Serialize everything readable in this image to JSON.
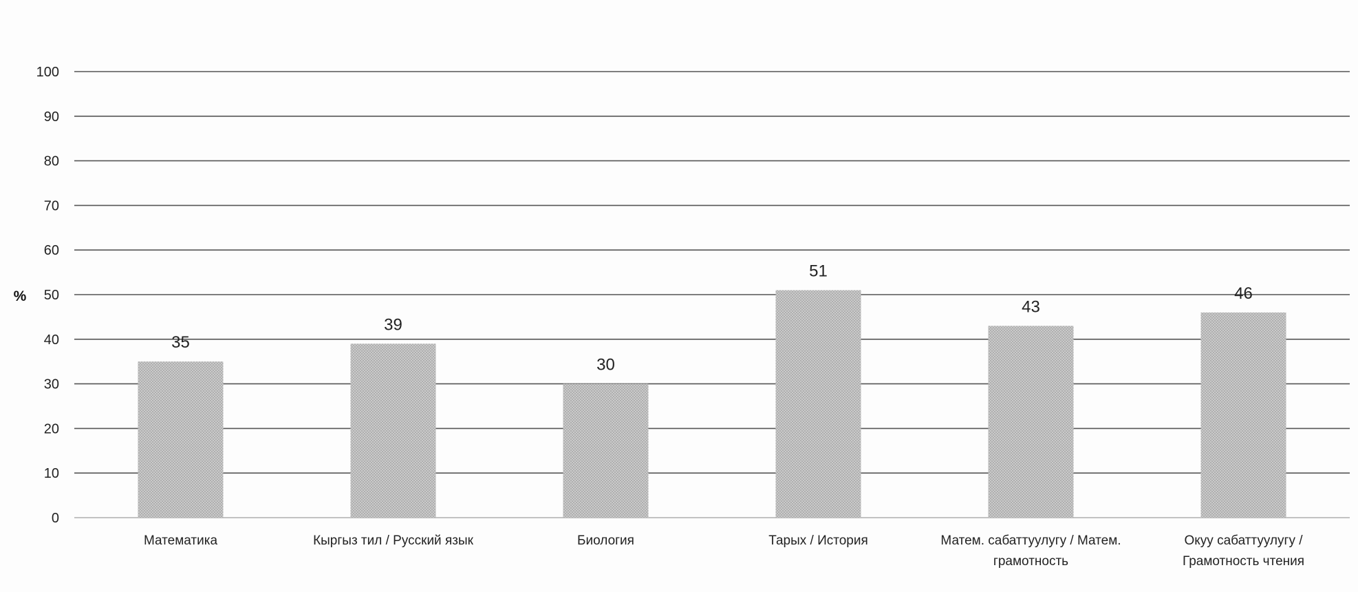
{
  "chart_data": {
    "type": "bar",
    "title": "",
    "xlabel": "",
    "ylabel": "%",
    "ylim": [
      0,
      100
    ],
    "yticks": [
      0,
      10,
      20,
      30,
      40,
      50,
      60,
      70,
      80,
      90,
      100
    ],
    "grid": true,
    "categories": [
      [
        "Математика"
      ],
      [
        "Кыргыз тил / Русский язык"
      ],
      [
        "Биология"
      ],
      [
        "Тарых / История"
      ],
      [
        "Матем. сабаттуулугу / Матем.",
        "грамотность"
      ],
      [
        "Окуу сабаттуулугу /",
        "Грамотность чтения"
      ]
    ],
    "values": [
      35,
      39,
      30,
      51,
      43,
      46
    ],
    "data_labels": [
      "35",
      "39",
      "30",
      "51",
      "43",
      "46"
    ],
    "colors": {
      "bar": "#c9c9c9",
      "bar_pattern": "#a9a9a9",
      "grid": "#555555",
      "axis": "#888888",
      "text": "#222222"
    }
  }
}
